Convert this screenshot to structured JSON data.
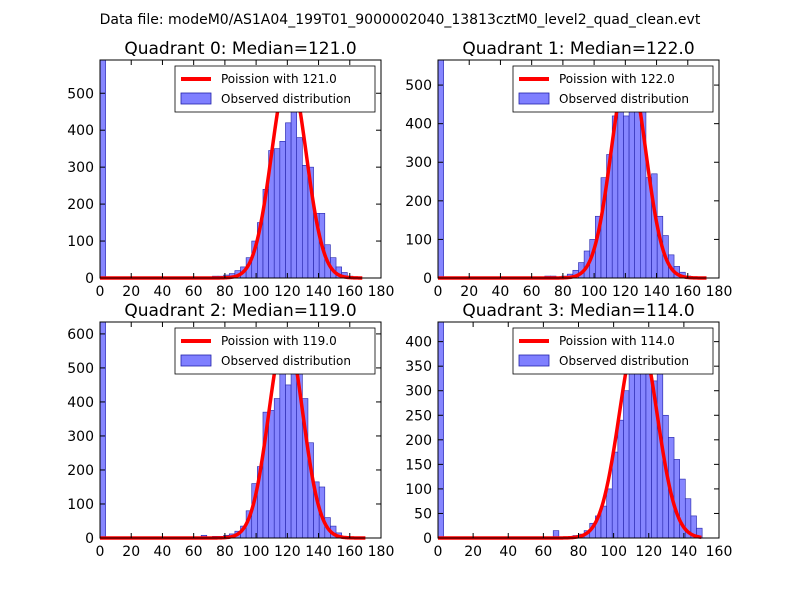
{
  "figure": {
    "suptitle": "Data file: modeM0/AS1A04_199T01_9000002040_13813cztM0_level2_quad_clean.evt",
    "colors": {
      "fit_line": "#ff0000",
      "bar_fill": "#7f7fff",
      "bar_edge": "#2222aa"
    }
  },
  "chart_data": [
    {
      "type": "bar",
      "title": "Quadrant 0: Median=121.0",
      "xlim": [
        0,
        180
      ],
      "ylim": [
        0,
        590
      ],
      "xticks": [
        0,
        20,
        40,
        60,
        80,
        100,
        120,
        140,
        160,
        180
      ],
      "yticks": [
        0,
        100,
        200,
        300,
        400,
        500
      ],
      "legend": [
        "Poission with 121.0",
        "Observed distribution"
      ],
      "median": 121.0,
      "fit_peak": 560,
      "fit_range": [
        0,
        168
      ],
      "bin_width": 3.6,
      "bins": [
        [
          0,
          590
        ],
        [
          64.8,
          2
        ],
        [
          72,
          5
        ],
        [
          75.6,
          5
        ],
        [
          79.2,
          8
        ],
        [
          82.8,
          12
        ],
        [
          86.4,
          20
        ],
        [
          90,
          30
        ],
        [
          93.6,
          55
        ],
        [
          97.2,
          100
        ],
        [
          100.8,
          150
        ],
        [
          104.4,
          240
        ],
        [
          108,
          345
        ],
        [
          111.6,
          350
        ],
        [
          115.2,
          370
        ],
        [
          118.8,
          420
        ],
        [
          122.4,
          560
        ],
        [
          126,
          380
        ],
        [
          129.6,
          305
        ],
        [
          133.2,
          300
        ],
        [
          136.8,
          175
        ],
        [
          140.4,
          175
        ],
        [
          144,
          90
        ],
        [
          147.6,
          55
        ],
        [
          151.2,
          30
        ],
        [
          154.8,
          15
        ],
        [
          158.4,
          5
        ]
      ]
    },
    {
      "type": "bar",
      "title": "Quadrant 1: Median=122.0",
      "xlim": [
        0,
        180
      ],
      "ylim": [
        0,
        565
      ],
      "xticks": [
        0,
        20,
        40,
        60,
        80,
        100,
        120,
        140,
        160,
        180
      ],
      "yticks": [
        0,
        100,
        200,
        300,
        400,
        500
      ],
      "legend": [
        "Poission with 122.0",
        "Observed distribution"
      ],
      "median": 122.0,
      "fit_peak": 545,
      "fit_range": [
        0,
        172
      ],
      "bin_width": 3.6,
      "bins": [
        [
          0,
          565
        ],
        [
          68.4,
          5
        ],
        [
          72,
          5
        ],
        [
          79.2,
          5
        ],
        [
          82.8,
          10
        ],
        [
          86.4,
          20
        ],
        [
          90,
          40
        ],
        [
          93.6,
          70
        ],
        [
          97.2,
          100
        ],
        [
          100.8,
          160
        ],
        [
          104.4,
          260
        ],
        [
          108,
          320
        ],
        [
          111.6,
          420
        ],
        [
          115.2,
          470
        ],
        [
          118.8,
          420
        ],
        [
          122.4,
          520
        ],
        [
          126,
          435
        ],
        [
          129.6,
          435
        ],
        [
          133.2,
          260
        ],
        [
          136.8,
          270
        ],
        [
          140.4,
          160
        ],
        [
          144,
          110
        ],
        [
          147.6,
          60
        ],
        [
          151.2,
          30
        ],
        [
          154.8,
          15
        ],
        [
          158.4,
          5
        ]
      ]
    },
    {
      "type": "bar",
      "title": "Quadrant 2: Median=119.0",
      "xlim": [
        0,
        180
      ],
      "ylim": [
        0,
        635
      ],
      "xticks": [
        0,
        20,
        40,
        60,
        80,
        100,
        120,
        140,
        160,
        180
      ],
      "yticks": [
        0,
        100,
        200,
        300,
        400,
        500,
        600
      ],
      "legend": [
        "Poission with 119.0",
        "Observed distribution"
      ],
      "median": 119.0,
      "fit_peak": 605,
      "fit_range": [
        0,
        170
      ],
      "bin_width": 3.6,
      "bins": [
        [
          0,
          635
        ],
        [
          64.8,
          8
        ],
        [
          72,
          5
        ],
        [
          75.6,
          5
        ],
        [
          79.2,
          8
        ],
        [
          82.8,
          12
        ],
        [
          86.4,
          20
        ],
        [
          90,
          35
        ],
        [
          93.6,
          80
        ],
        [
          97.2,
          160
        ],
        [
          100.8,
          210
        ],
        [
          104.4,
          370
        ],
        [
          108,
          375
        ],
        [
          111.6,
          410
        ],
        [
          115.2,
          510
        ],
        [
          118.8,
          450
        ],
        [
          122.4,
          520
        ],
        [
          126,
          550
        ],
        [
          129.6,
          410
        ],
        [
          133.2,
          280
        ],
        [
          136.8,
          165
        ],
        [
          140.4,
          150
        ],
        [
          144,
          60
        ],
        [
          147.6,
          35
        ],
        [
          151.2,
          15
        ],
        [
          154.8,
          5
        ]
      ]
    },
    {
      "type": "bar",
      "title": "Quadrant 3: Median=114.0",
      "xlim": [
        0,
        160
      ],
      "ylim": [
        0,
        440
      ],
      "xticks": [
        0,
        20,
        40,
        60,
        80,
        100,
        120,
        140,
        160
      ],
      "yticks": [
        0,
        50,
        100,
        150,
        200,
        250,
        300,
        350,
        400
      ],
      "legend": [
        "Poission with 114.0",
        "Observed distribution"
      ],
      "median": 114.0,
      "fit_peak": 420,
      "fit_range": [
        0,
        150
      ],
      "bin_width": 3.2,
      "bins": [
        [
          0,
          440
        ],
        [
          65.6,
          15
        ],
        [
          76.8,
          5
        ],
        [
          80,
          8
        ],
        [
          83.2,
          15
        ],
        [
          86.4,
          30
        ],
        [
          89.6,
          45
        ],
        [
          92.8,
          65
        ],
        [
          96,
          100
        ],
        [
          99.2,
          175
        ],
        [
          102.4,
          240
        ],
        [
          105.6,
          300
        ],
        [
          108.8,
          360
        ],
        [
          112,
          420
        ],
        [
          115.2,
          365
        ],
        [
          118.4,
          390
        ],
        [
          121.6,
          320
        ],
        [
          124.8,
          340
        ],
        [
          128,
          250
        ],
        [
          131.2,
          205
        ],
        [
          134.4,
          160
        ],
        [
          137.6,
          120
        ],
        [
          140.8,
          80
        ],
        [
          144,
          45
        ],
        [
          147.2,
          20
        ]
      ]
    }
  ]
}
